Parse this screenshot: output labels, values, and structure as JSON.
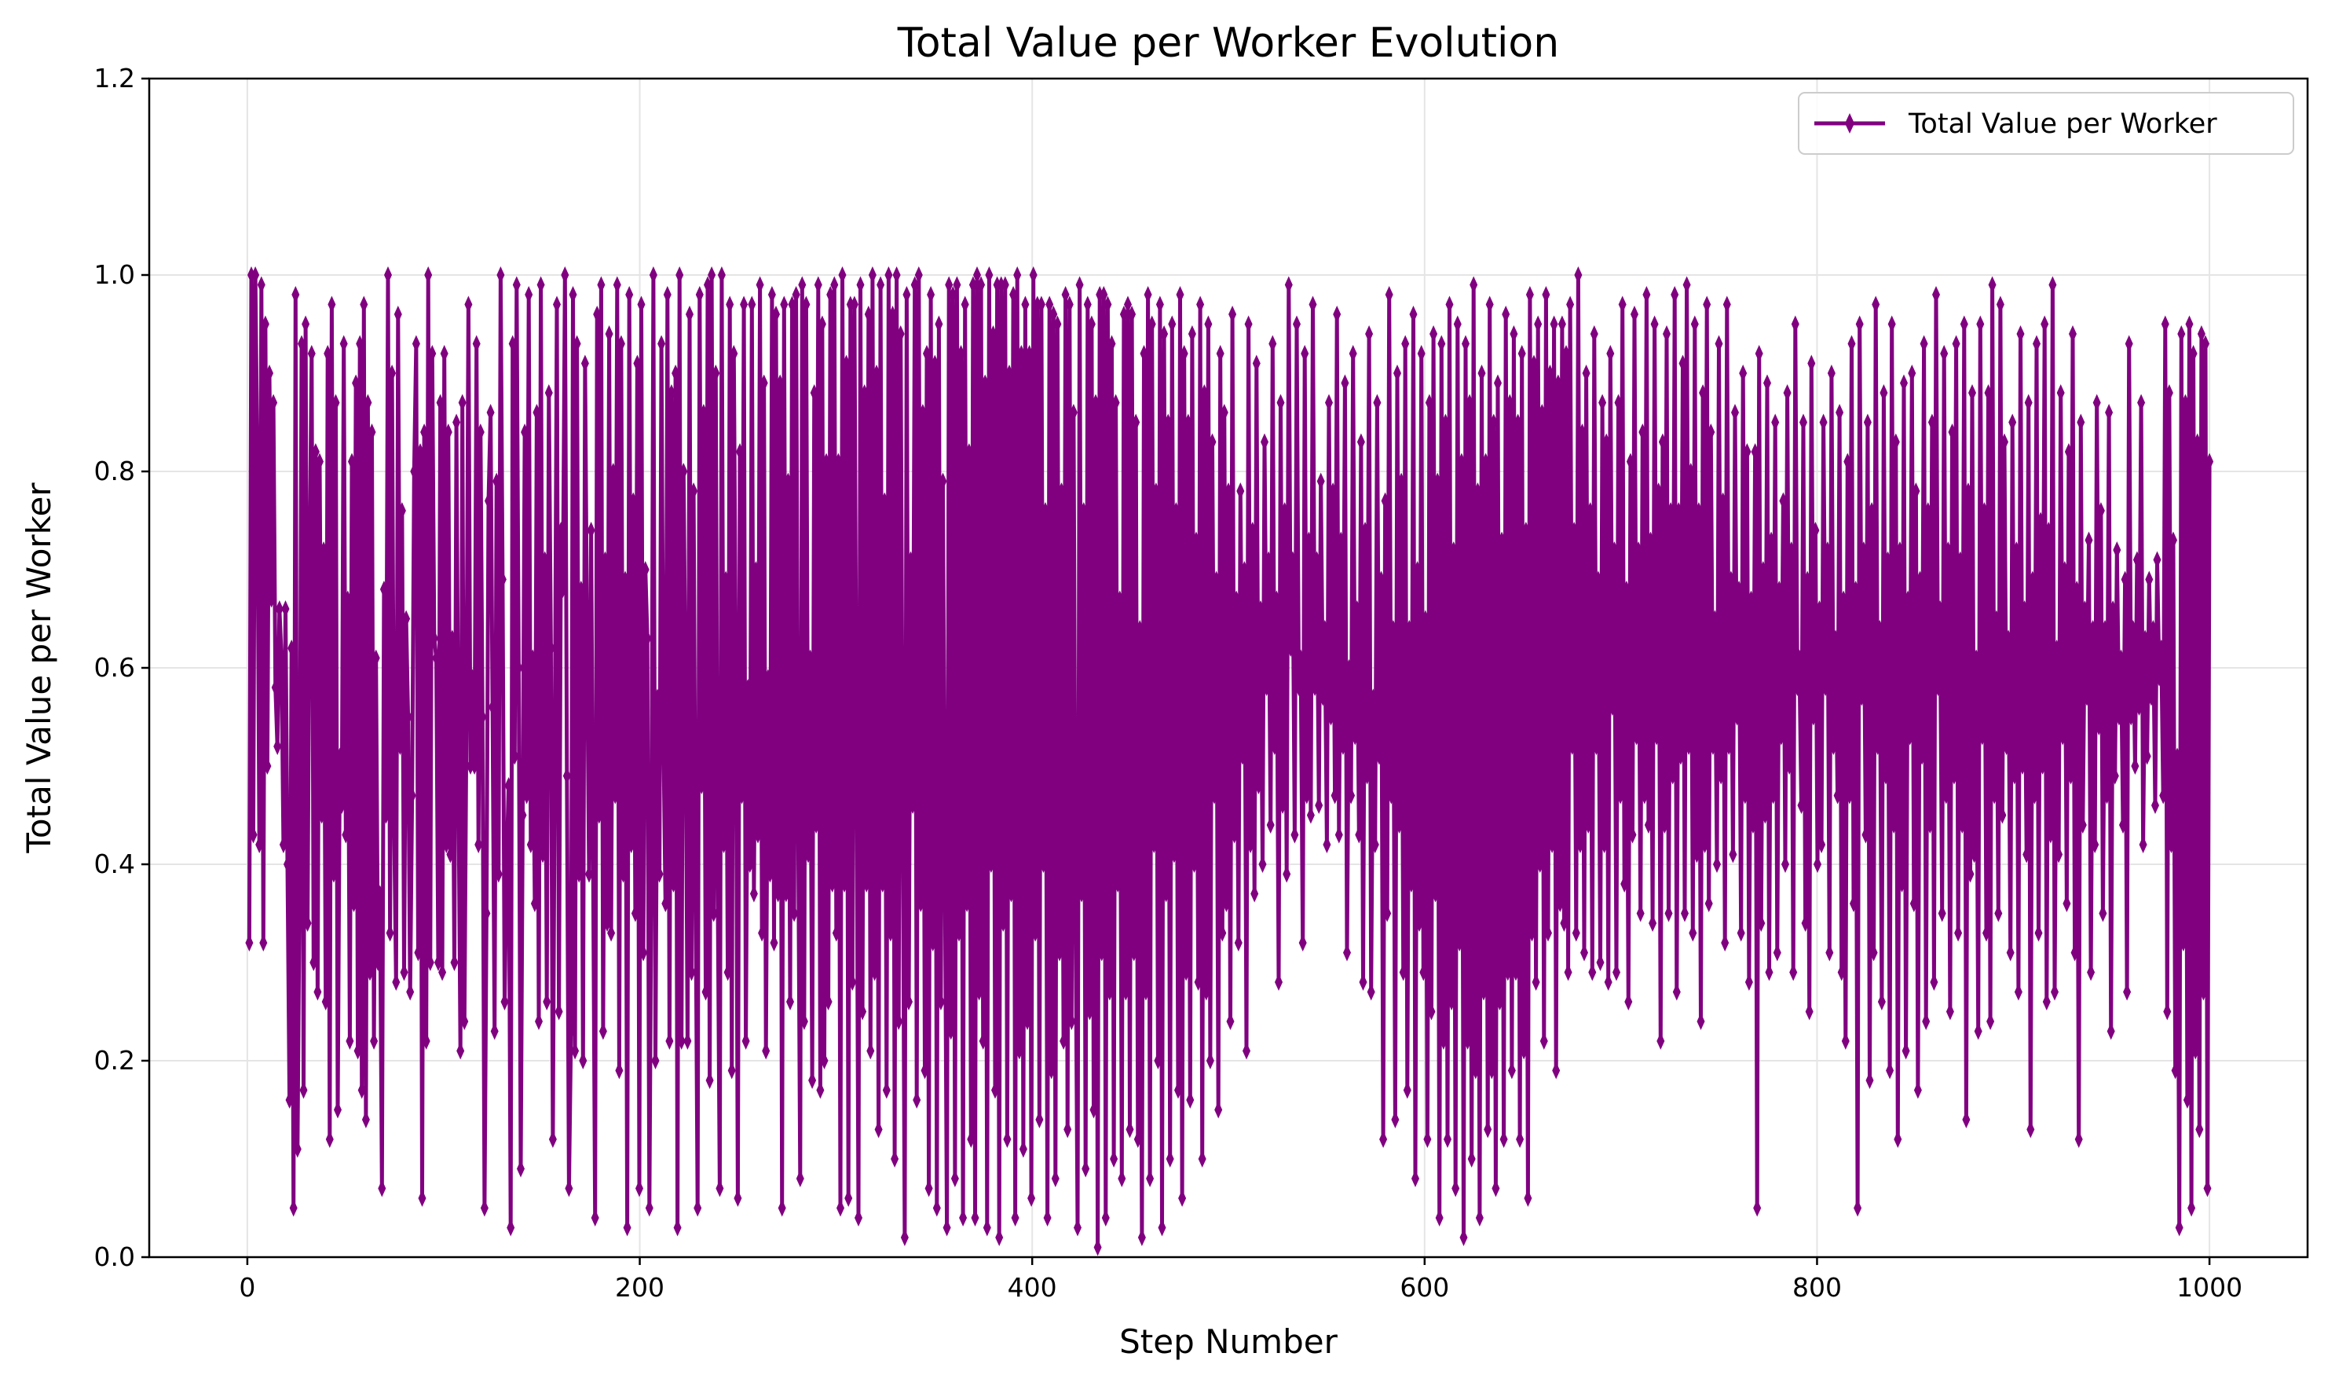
{
  "chart_data": {
    "type": "line",
    "title": "Total Value per Worker Evolution",
    "xlabel": "Step Number",
    "ylabel": "Total Value per Worker",
    "xlim": [
      -50,
      1050
    ],
    "ylim": [
      0.0,
      1.2
    ],
    "x_ticks": [
      0,
      200,
      400,
      600,
      800,
      1000
    ],
    "y_ticks": [
      0.0,
      0.2,
      0.4,
      0.6,
      0.8,
      1.0,
      1.2
    ],
    "x_tick_labels": [
      "0",
      "200",
      "400",
      "600",
      "800",
      "1000"
    ],
    "y_tick_labels": [
      "0.0",
      "0.2",
      "0.4",
      "0.6",
      "0.8",
      "1.0",
      "1.2"
    ],
    "grid": true,
    "legend_position": "upper right",
    "marker": "thin diamond",
    "series": [
      {
        "name": "Total Value per Worker",
        "color": "#800080",
        "x_start": 1,
        "x_end": 1000,
        "values": [
          0.32,
          1.0,
          0.43,
          1.0,
          0.81,
          0.42,
          0.99,
          0.32,
          0.95,
          0.5,
          0.9,
          0.67,
          0.87,
          0.58,
          0.52,
          0.66,
          0.61,
          0.42,
          0.66,
          0.4,
          0.16,
          0.62,
          0.05,
          0.98,
          0.11,
          0.38,
          0.93,
          0.17,
          0.95,
          0.34,
          0.71,
          0.92,
          0.3,
          0.82,
          0.27,
          0.81,
          0.45,
          0.72,
          0.26,
          0.92,
          0.12,
          0.97,
          0.39,
          0.87,
          0.15,
          0.51,
          0.46,
          0.93,
          0.43,
          0.67,
          0.22,
          0.81,
          0.36,
          0.89,
          0.21,
          0.93,
          0.17,
          0.97,
          0.14,
          0.87,
          0.29,
          0.84,
          0.22,
          0.61,
          0.3,
          0.37,
          0.07,
          0.68,
          0.45,
          1.0,
          0.33,
          0.9,
          0.45,
          0.28,
          0.96,
          0.52,
          0.76,
          0.29,
          0.65,
          0.55,
          0.27,
          0.47,
          0.8,
          0.93,
          0.31,
          0.82,
          0.06,
          0.84,
          0.22,
          1.0,
          0.3,
          0.92,
          0.63,
          0.61,
          0.3,
          0.87,
          0.29,
          0.92,
          0.42,
          0.84,
          0.41,
          0.63,
          0.3,
          0.85,
          0.5,
          0.21,
          0.87,
          0.24,
          0.55,
          0.97,
          0.5,
          0.59,
          0.5,
          0.93,
          0.42,
          0.84,
          0.55,
          0.05,
          0.35,
          0.77,
          0.86,
          0.56,
          0.23,
          0.79,
          0.39,
          1.0,
          0.69,
          0.26,
          0.4,
          0.48,
          0.03,
          0.93,
          0.51,
          0.99,
          0.6,
          0.09,
          0.45,
          0.84,
          0.47,
          0.98,
          0.42,
          0.61,
          0.36,
          0.86,
          0.24,
          0.99,
          0.41,
          0.71,
          0.26,
          0.88,
          0.62,
          0.12,
          0.54,
          0.97,
          0.25,
          0.74,
          0.68,
          1.0,
          0.49,
          0.07,
          0.23,
          0.98,
          0.21,
          0.93,
          0.39,
          0.68,
          0.2,
          0.91,
          0.63,
          0.39,
          0.74,
          0.41,
          0.04,
          0.96,
          0.45,
          0.99,
          0.23,
          0.71,
          0.34,
          0.94,
          0.33,
          0.8,
          0.47,
          0.99,
          0.19,
          0.93,
          0.39,
          0.69,
          0.03,
          0.98,
          0.42,
          0.77,
          0.35,
          0.91,
          0.07,
          0.97,
          0.31,
          0.7,
          0.63,
          0.05,
          0.39,
          1.0,
          0.2,
          0.57,
          0.39,
          0.93,
          0.53,
          0.36,
          0.98,
          0.22,
          0.88,
          0.38,
          0.9,
          0.03,
          1.0,
          0.22,
          0.8,
          0.57,
          0.22,
          0.96,
          0.29,
          0.78,
          0.37,
          0.05,
          0.98,
          0.48,
          0.86,
          0.27,
          0.99,
          0.18,
          1.0,
          0.35,
          0.9,
          0.38,
          0.07,
          1.0,
          0.42,
          0.69,
          0.29,
          0.97,
          0.19,
          0.92,
          0.61,
          0.06,
          0.82,
          0.47,
          0.97,
          0.22,
          0.58,
          0.4,
          0.97,
          0.37,
          0.7,
          0.43,
          0.99,
          0.33,
          0.89,
          0.21,
          0.59,
          0.39,
          0.98,
          0.32,
          0.96,
          0.37,
          0.89,
          0.05,
          0.97,
          0.37,
          0.79,
          0.26,
          0.97,
          0.35,
          0.98,
          0.45,
          0.08,
          0.99,
          0.24,
          0.97,
          0.41,
          0.61,
          0.18,
          0.88,
          0.44,
          0.99,
          0.17,
          0.95,
          0.2,
          0.81,
          0.26,
          0.98,
          0.38,
          0.99,
          0.33,
          0.81,
          0.05,
          1.0,
          0.38,
          0.91,
          0.06,
          0.97,
          0.28,
          0.97,
          0.53,
          0.04,
          0.99,
          0.25,
          0.88,
          0.38,
          0.96,
          0.21,
          1.0,
          0.29,
          0.9,
          0.13,
          0.99,
          0.38,
          0.77,
          0.17,
          1.0,
          0.33,
          0.96,
          0.1,
          1.0,
          0.24,
          0.94,
          0.47,
          0.02,
          0.98,
          0.26,
          0.71,
          0.46,
          0.99,
          0.16,
          1.0,
          0.36,
          0.86,
          0.19,
          0.92,
          0.07,
          0.98,
          0.32,
          0.91,
          0.05,
          0.95,
          0.26,
          0.79,
          0.39,
          0.03,
          0.99,
          0.23,
          0.98,
          0.08,
          0.99,
          0.33,
          0.92,
          0.04,
          0.97,
          0.36,
          0.82,
          0.12,
          0.99,
          0.04,
          1.0,
          0.27,
          0.99,
          0.22,
          0.89,
          0.03,
          1.0,
          0.4,
          0.94,
          0.17,
          0.99,
          0.02,
          0.99,
          0.34,
          0.99,
          0.12,
          0.9,
          0.37,
          0.98,
          0.04,
          1.0,
          0.21,
          0.92,
          0.11,
          0.97,
          0.24,
          0.92,
          0.06,
          1.0,
          0.33,
          0.97,
          0.14,
          0.97,
          0.4,
          0.76,
          0.04,
          0.97,
          0.19,
          0.96,
          0.08,
          0.95,
          0.31,
          0.78,
          0.22,
          0.98,
          0.13,
          0.97,
          0.24,
          0.86,
          0.35,
          0.03,
          0.99,
          0.37,
          0.76,
          0.09,
          0.97,
          0.25,
          0.95,
          0.15,
          0.87,
          0.01,
          0.98,
          0.31,
          0.98,
          0.04,
          0.97,
          0.27,
          0.93,
          0.1,
          0.87,
          0.38,
          0.67,
          0.08,
          0.96,
          0.27,
          0.97,
          0.13,
          0.96,
          0.31,
          0.85,
          0.12,
          0.64,
          0.02,
          0.92,
          0.27,
          0.98,
          0.08,
          0.95,
          0.42,
          0.78,
          0.2,
          0.97,
          0.03,
          0.94,
          0.37,
          0.85,
          0.1,
          0.95,
          0.41,
          0.76,
          0.17,
          0.98,
          0.06,
          0.92,
          0.29,
          0.85,
          0.16,
          0.94,
          0.4,
          0.73,
          0.28,
          0.97,
          0.1,
          0.88,
          0.27,
          0.95,
          0.2,
          0.83,
          0.47,
          0.69,
          0.15,
          0.92,
          0.33,
          0.86,
          0.36,
          0.78,
          0.24,
          0.96,
          0.43,
          0.67,
          0.32,
          0.78,
          0.51,
          0.7,
          0.21,
          0.95,
          0.42,
          0.74,
          0.37,
          0.91,
          0.48,
          0.66,
          0.4,
          0.83,
          0.58,
          0.71,
          0.44,
          0.93,
          0.52,
          0.67,
          0.28,
          0.87,
          0.46,
          0.76,
          0.39,
          0.99,
          0.62,
          0.71,
          0.43,
          0.95,
          0.58,
          0.61,
          0.32,
          0.92,
          0.47,
          0.73,
          0.45,
          0.97,
          0.58,
          0.71,
          0.46,
          0.79,
          0.57,
          0.64,
          0.42,
          0.87,
          0.55,
          0.78,
          0.47,
          0.96,
          0.43,
          0.73,
          0.52,
          0.89,
          0.31,
          0.6,
          0.47,
          0.92,
          0.53,
          0.66,
          0.43,
          0.83,
          0.28,
          0.74,
          0.49,
          0.94,
          0.27,
          0.57,
          0.42,
          0.87,
          0.51,
          0.69,
          0.12,
          0.77,
          0.35,
          0.98,
          0.47,
          0.64,
          0.14,
          0.9,
          0.44,
          0.79,
          0.29,
          0.93,
          0.17,
          0.64,
          0.38,
          0.96,
          0.08,
          0.7,
          0.34,
          0.92,
          0.29,
          0.65,
          0.12,
          0.87,
          0.25,
          0.94,
          0.37,
          0.79,
          0.04,
          0.93,
          0.22,
          0.85,
          0.12,
          0.97,
          0.26,
          0.72,
          0.07,
          0.95,
          0.32,
          0.81,
          0.02,
          0.93,
          0.22,
          0.87,
          0.1,
          0.99,
          0.19,
          0.78,
          0.04,
          0.9,
          0.27,
          0.81,
          0.13,
          0.97,
          0.19,
          0.85,
          0.07,
          0.89,
          0.26,
          0.73,
          0.12,
          0.96,
          0.29,
          0.87,
          0.19,
          0.94,
          0.29,
          0.85,
          0.12,
          0.92,
          0.21,
          0.74,
          0.06,
          0.98,
          0.33,
          0.91,
          0.28,
          0.95,
          0.4,
          0.86,
          0.22,
          0.98,
          0.33,
          0.9,
          0.42,
          0.95,
          0.19,
          0.89,
          0.36,
          0.95,
          0.34,
          0.92,
          0.29,
          0.97,
          0.52,
          0.74,
          0.33,
          1.0,
          0.42,
          0.84,
          0.31,
          0.9,
          0.44,
          0.76,
          0.29,
          0.94,
          0.52,
          0.69,
          0.3,
          0.87,
          0.42,
          0.83,
          0.28,
          0.92,
          0.56,
          0.72,
          0.29,
          0.87,
          0.47,
          0.97,
          0.38,
          0.68,
          0.26,
          0.81,
          0.43,
          0.96,
          0.53,
          0.72,
          0.35,
          0.84,
          0.47,
          0.98,
          0.44,
          0.73,
          0.34,
          0.95,
          0.53,
          0.78,
          0.22,
          0.83,
          0.44,
          0.94,
          0.35,
          0.76,
          0.49,
          0.98,
          0.27,
          0.76,
          0.51,
          0.91,
          0.35,
          0.99,
          0.52,
          0.8,
          0.33,
          0.95,
          0.41,
          0.76,
          0.24,
          0.88,
          0.42,
          0.97,
          0.36,
          0.84,
          0.52,
          0.65,
          0.4,
          0.93,
          0.49,
          0.77,
          0.32,
          0.97,
          0.52,
          0.69,
          0.41,
          0.86,
          0.55,
          0.68,
          0.33,
          0.9,
          0.47,
          0.82,
          0.28,
          0.67,
          0.44,
          0.82,
          0.05,
          0.92,
          0.34,
          0.7,
          0.45,
          0.89,
          0.29,
          0.73,
          0.47,
          0.85,
          0.31,
          0.68,
          0.53,
          0.77,
          0.4,
          0.88,
          0.5,
          0.72,
          0.29,
          0.95,
          0.58,
          0.61,
          0.46,
          0.85,
          0.34,
          0.69,
          0.25,
          0.91,
          0.55,
          0.74,
          0.4,
          0.66,
          0.42,
          0.85,
          0.58,
          0.72,
          0.31,
          0.9,
          0.52,
          0.63,
          0.47,
          0.86,
          0.29,
          0.67,
          0.22,
          0.81,
          0.47,
          0.93,
          0.36,
          0.68,
          0.05,
          0.95,
          0.57,
          0.72,
          0.43,
          0.85,
          0.18,
          0.76,
          0.31,
          0.97,
          0.52,
          0.64,
          0.26,
          0.88,
          0.49,
          0.71,
          0.19,
          0.95,
          0.44,
          0.83,
          0.12,
          0.72,
          0.38,
          0.89,
          0.21,
          0.67,
          0.53,
          0.9,
          0.36,
          0.78,
          0.17,
          0.69,
          0.51,
          0.93,
          0.24,
          0.76,
          0.44,
          0.85,
          0.28,
          0.98,
          0.58,
          0.66,
          0.35,
          0.92,
          0.47,
          0.72,
          0.25,
          0.84,
          0.49,
          0.93,
          0.33,
          0.71,
          0.44,
          0.95,
          0.14,
          0.78,
          0.39,
          0.88,
          0.41,
          0.61,
          0.23,
          0.95,
          0.53,
          0.76,
          0.33,
          0.88,
          0.24,
          0.99,
          0.47,
          0.65,
          0.35,
          0.97,
          0.45,
          0.83,
          0.52,
          0.63,
          0.31,
          0.85,
          0.49,
          0.72,
          0.27,
          0.94,
          0.5,
          0.66,
          0.41,
          0.87,
          0.13,
          0.69,
          0.47,
          0.93,
          0.33,
          0.75,
          0.5,
          0.95,
          0.26,
          0.74,
          0.43,
          0.99,
          0.27,
          0.62,
          0.41,
          0.88,
          0.53,
          0.7,
          0.36,
          0.82,
          0.49,
          0.94,
          0.31,
          0.68,
          0.12,
          0.85,
          0.44,
          0.66,
          0.57,
          0.73,
          0.29,
          0.64,
          0.42,
          0.87,
          0.54,
          0.76,
          0.35,
          0.64,
          0.47,
          0.86,
          0.23,
          0.66,
          0.49,
          0.72,
          0.55,
          0.61,
          0.44,
          0.69,
          0.27,
          0.93,
          0.55,
          0.64,
          0.5,
          0.71,
          0.56,
          0.87,
          0.42,
          0.63,
          0.51,
          0.69,
          0.57,
          0.64,
          0.46,
          0.71,
          0.59,
          0.62,
          0.47,
          0.95,
          0.25,
          0.88,
          0.42,
          0.73,
          0.19,
          0.51,
          0.03,
          0.94,
          0.32,
          0.87,
          0.16,
          0.95,
          0.05,
          0.92,
          0.21,
          0.83,
          0.13,
          0.94,
          0.27,
          0.93,
          0.07,
          0.81
        ]
      }
    ]
  }
}
